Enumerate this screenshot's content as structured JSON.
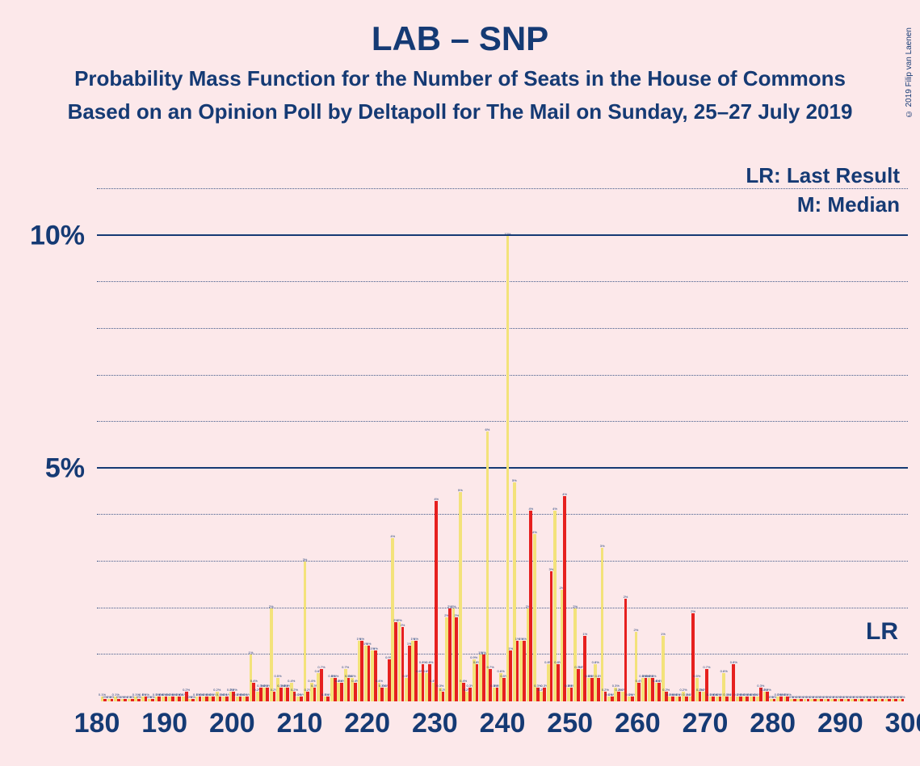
{
  "title": "LAB – SNP",
  "subtitle1": "Probability Mass Function for the Number of Seats in the House of Commons",
  "subtitle2": "Based on an Opinion Poll by Deltapoll for The Mail on Sunday, 25–27 July 2019",
  "copyright": "© 2019 Filip van Laenen",
  "legend": {
    "lr": "LR: Last Result",
    "m": "M: Median"
  },
  "lr_marker": "LR",
  "chart": {
    "type": "bar",
    "background_color": "#fce8ea",
    "text_color": "#153a74",
    "series_colors": {
      "yellow": "#f3e27a",
      "red": "#e6201f"
    },
    "xlim": [
      180,
      300
    ],
    "ylim": [
      0,
      0.11
    ],
    "xtick_step": 10,
    "ytick_major": [
      0.05,
      0.1
    ],
    "ytick_minor_step": 0.01,
    "ytick_labels": {
      "0.05": "5%",
      "0.10": "10%"
    },
    "grid_major_color": "#153a74",
    "grid_minor_style": "dotted",
    "bar_group_width": 0.9,
    "lr_ypos_pct": 0.012,
    "bars": [
      {
        "x": 181,
        "y": 0.001,
        "r": 0.0005
      },
      {
        "x": 182,
        "y": 0.0005,
        "r": 0.0005
      },
      {
        "x": 183,
        "y": 0.001,
        "r": 0.0005
      },
      {
        "x": 184,
        "y": 0.0005,
        "r": 0.0005
      },
      {
        "x": 185,
        "y": 0.0005,
        "r": 0.0005
      },
      {
        "x": 186,
        "y": 0.001,
        "r": 0.0005
      },
      {
        "x": 187,
        "y": 0.001,
        "r": 0.001
      },
      {
        "x": 188,
        "y": 0.0005,
        "r": 0.0005
      },
      {
        "x": 189,
        "y": 0.001,
        "r": 0.001
      },
      {
        "x": 190,
        "y": 0.001,
        "r": 0.001
      },
      {
        "x": 191,
        "y": 0.001,
        "r": 0.001
      },
      {
        "x": 192,
        "y": 0.001,
        "r": 0.001
      },
      {
        "x": 193,
        "y": 0.001,
        "r": 0.002
      },
      {
        "x": 194,
        "y": 0.0005,
        "r": 0.0005
      },
      {
        "x": 195,
        "y": 0.001,
        "r": 0.001
      },
      {
        "x": 196,
        "y": 0.001,
        "r": 0.001
      },
      {
        "x": 197,
        "y": 0.001,
        "r": 0.001
      },
      {
        "x": 198,
        "y": 0.002,
        "r": 0.001
      },
      {
        "x": 199,
        "y": 0.001,
        "r": 0.001
      },
      {
        "x": 200,
        "y": 0.002,
        "r": 0.002
      },
      {
        "x": 201,
        "y": 0.001,
        "r": 0.001
      },
      {
        "x": 202,
        "y": 0.001,
        "r": 0.001
      },
      {
        "x": 203,
        "y": 0.01,
        "r": 0.004
      },
      {
        "x": 204,
        "y": 0.002,
        "r": 0.003
      },
      {
        "x": 205,
        "y": 0.003,
        "r": 0.003
      },
      {
        "x": 206,
        "y": 0.02,
        "r": 0.002
      },
      {
        "x": 207,
        "y": 0.005,
        "r": 0.003
      },
      {
        "x": 208,
        "y": 0.003,
        "r": 0.003
      },
      {
        "x": 209,
        "y": 0.004,
        "r": 0.002
      },
      {
        "x": 210,
        "y": 0.001,
        "r": 0.001
      },
      {
        "x": 211,
        "y": 0.03,
        "r": 0.002
      },
      {
        "x": 212,
        "y": 0.004,
        "r": 0.003
      },
      {
        "x": 213,
        "y": 0.006,
        "r": 0.007
      },
      {
        "x": 214,
        "y": 0.001,
        "r": 0.001
      },
      {
        "x": 215,
        "y": 0.005,
        "r": 0.005
      },
      {
        "x": 216,
        "y": 0.004,
        "r": 0.004
      },
      {
        "x": 217,
        "y": 0.007,
        "r": 0.005
      },
      {
        "x": 218,
        "y": 0.005,
        "r": 0.004
      },
      {
        "x": 219,
        "y": 0.013,
        "r": 0.013
      },
      {
        "x": 220,
        "y": 0.012,
        "r": 0.012
      },
      {
        "x": 221,
        "y": 0.011,
        "r": 0.011
      },
      {
        "x": 222,
        "y": 0.004,
        "r": 0.003
      },
      {
        "x": 223,
        "y": 0.003,
        "r": 0.009
      },
      {
        "x": 224,
        "y": 0.035,
        "r": 0.017
      },
      {
        "x": 225,
        "y": 0.017,
        "r": 0.016
      },
      {
        "x": 226,
        "y": 0.005,
        "r": 0.012
      },
      {
        "x": 227,
        "y": 0.013,
        "r": 0.013
      },
      {
        "x": 228,
        "y": 0.006,
        "r": 0.008
      },
      {
        "x": 229,
        "y": 0.006,
        "r": 0.008
      },
      {
        "x": 230,
        "y": 0.004,
        "r": 0.043
      },
      {
        "x": 231,
        "y": 0.003,
        "r": 0.002
      },
      {
        "x": 232,
        "y": 0.018,
        "r": 0.02
      },
      {
        "x": 233,
        "y": 0.02,
        "r": 0.018
      },
      {
        "x": 234,
        "y": 0.045,
        "r": 0.004
      },
      {
        "x": 235,
        "y": 0.002,
        "r": 0.003
      },
      {
        "x": 236,
        "y": 0.009,
        "r": 0.008
      },
      {
        "x": 237,
        "y": 0.01,
        "r": 0.01
      },
      {
        "x": 238,
        "y": 0.058,
        "r": 0.007
      },
      {
        "x": 239,
        "y": 0.003,
        "r": 0.003
      },
      {
        "x": 240,
        "y": 0.006,
        "r": 0.005
      },
      {
        "x": 241,
        "y": 0.1,
        "r": 0.011
      },
      {
        "x": 242,
        "y": 0.047,
        "r": 0.013
      },
      {
        "x": 243,
        "y": 0.013,
        "r": 0.013
      },
      {
        "x": 244,
        "y": 0.02,
        "r": 0.041
      },
      {
        "x": 245,
        "y": 0.036,
        "r": 0.003
      },
      {
        "x": 246,
        "y": 0.002,
        "r": 0.003
      },
      {
        "x": 247,
        "y": 0.008,
        "r": 0.028
      },
      {
        "x": 248,
        "y": 0.041,
        "r": 0.008
      },
      {
        "x": 249,
        "y": 0.024,
        "r": 0.044
      },
      {
        "x": 250,
        "y": 0.003,
        "r": 0.003
      },
      {
        "x": 251,
        "y": 0.02,
        "r": 0.007
      },
      {
        "x": 252,
        "y": 0.007,
        "r": 0.014
      },
      {
        "x": 253,
        "y": 0.005,
        "r": 0.005
      },
      {
        "x": 254,
        "y": 0.008,
        "r": 0.005
      },
      {
        "x": 255,
        "y": 0.033,
        "r": 0.002
      },
      {
        "x": 256,
        "y": 0.001,
        "r": 0.001
      },
      {
        "x": 257,
        "y": 0.003,
        "r": 0.002
      },
      {
        "x": 258,
        "y": 0.002,
        "r": 0.022
      },
      {
        "x": 259,
        "y": 0.001,
        "r": 0.001
      },
      {
        "x": 260,
        "y": 0.015,
        "r": 0.004
      },
      {
        "x": 261,
        "y": 0.005,
        "r": 0.005
      },
      {
        "x": 262,
        "y": 0.005,
        "r": 0.005
      },
      {
        "x": 263,
        "y": 0.004,
        "r": 0.004
      },
      {
        "x": 264,
        "y": 0.014,
        "r": 0.002
      },
      {
        "x": 265,
        "y": 0.001,
        "r": 0.001
      },
      {
        "x": 266,
        "y": 0.001,
        "r": 0.001
      },
      {
        "x": 267,
        "y": 0.002,
        "r": 0.001
      },
      {
        "x": 268,
        "y": 0.001,
        "r": 0.019
      },
      {
        "x": 269,
        "y": 0.005,
        "r": 0.002
      },
      {
        "x": 270,
        "y": 0.002,
        "r": 0.007
      },
      {
        "x": 271,
        "y": 0.001,
        "r": 0.001
      },
      {
        "x": 272,
        "y": 0.001,
        "r": 0.001
      },
      {
        "x": 273,
        "y": 0.006,
        "r": 0.001
      },
      {
        "x": 274,
        "y": 0.001,
        "r": 0.008
      },
      {
        "x": 275,
        "y": 0.001,
        "r": 0.001
      },
      {
        "x": 276,
        "y": 0.001,
        "r": 0.001
      },
      {
        "x": 277,
        "y": 0.001,
        "r": 0.001
      },
      {
        "x": 278,
        "y": 0.001,
        "r": 0.003
      },
      {
        "x": 279,
        "y": 0.002,
        "r": 0.002
      },
      {
        "x": 280,
        "y": 0.0005,
        "r": 0.0005
      },
      {
        "x": 281,
        "y": 0.001,
        "r": 0.001
      },
      {
        "x": 282,
        "y": 0.001,
        "r": 0.001
      },
      {
        "x": 283,
        "y": 0.0005,
        "r": 0.0005
      },
      {
        "x": 284,
        "y": 0.0005,
        "r": 0.0005
      },
      {
        "x": 285,
        "y": 0.0005,
        "r": 0.0005
      },
      {
        "x": 286,
        "y": 0.0005,
        "r": 0.0005
      },
      {
        "x": 287,
        "y": 0.0005,
        "r": 0.0005
      },
      {
        "x": 288,
        "y": 0.0005,
        "r": 0.0005
      },
      {
        "x": 289,
        "y": 0.0005,
        "r": 0.0005
      },
      {
        "x": 290,
        "y": 0.0005,
        "r": 0.0005
      },
      {
        "x": 291,
        "y": 0.0005,
        "r": 0.0005
      },
      {
        "x": 292,
        "y": 0.0005,
        "r": 0.0005
      },
      {
        "x": 293,
        "y": 0.0005,
        "r": 0.0005
      },
      {
        "x": 294,
        "y": 0.0005,
        "r": 0.0005
      },
      {
        "x": 295,
        "y": 0.0005,
        "r": 0.0005
      },
      {
        "x": 296,
        "y": 0.0005,
        "r": 0.0005
      },
      {
        "x": 297,
        "y": 0.0005,
        "r": 0.0005
      },
      {
        "x": 298,
        "y": 0.0005,
        "r": 0.0005
      },
      {
        "x": 299,
        "y": 0.0005,
        "r": 0.0005
      }
    ]
  }
}
